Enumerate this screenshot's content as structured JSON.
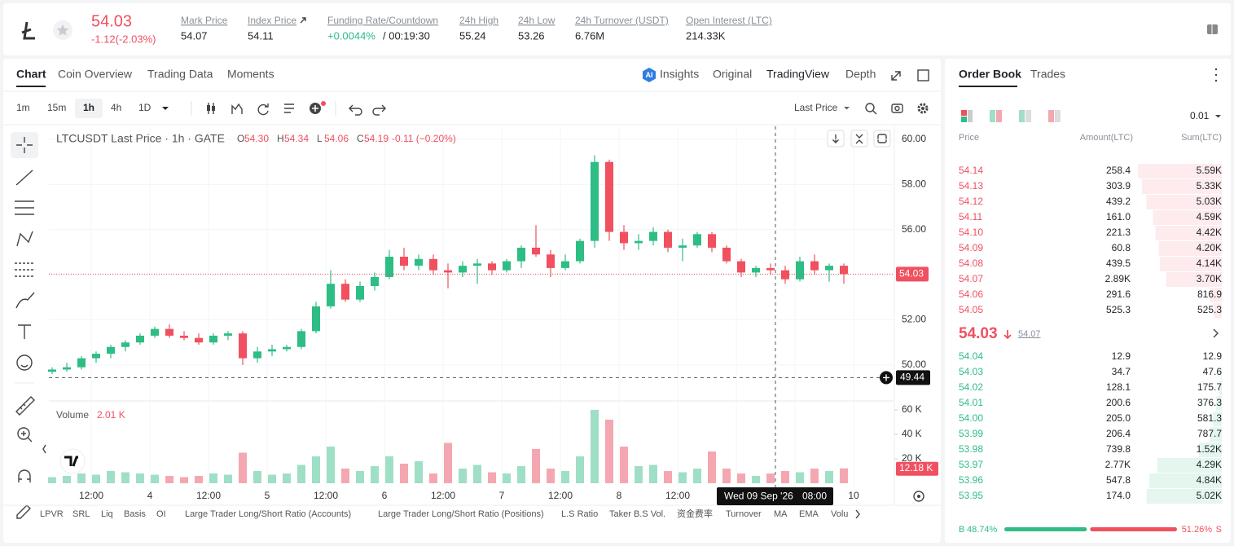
{
  "header": {
    "price": "54.03",
    "change": "-1.12(-2.03%)",
    "stats": [
      {
        "label": "Mark Price",
        "value": "54.07"
      },
      {
        "label": "Index Price",
        "value": "54.11"
      },
      {
        "label": "Funding Rate/Countdown",
        "value": "+0.0044%",
        "extra": "/ 00:19:30"
      },
      {
        "label": "24h High",
        "value": "55.24"
      },
      {
        "label": "24h Low",
        "value": "53.26"
      },
      {
        "label": "24h Turnover (USDT)",
        "value": "6.76M"
      },
      {
        "label": "Open Interest (LTC)",
        "value": "214.33K"
      }
    ]
  },
  "chart_tabs": [
    "Chart",
    "Coin Overview",
    "Trading Data",
    "Moments"
  ],
  "view_tabs": [
    "Insights",
    "Original",
    "TradingView",
    "Depth"
  ],
  "intervals": [
    "1m",
    "15m",
    "1h",
    "4h",
    "1D"
  ],
  "price_type": "Last Price",
  "chart_data": {
    "type": "candlestick",
    "title": "LTCUSDT Last Price · 1h · GATE",
    "ohlc_legend": [
      [
        "O",
        "54.30"
      ],
      [
        "H",
        "54.34"
      ],
      [
        "L",
        "54.06"
      ],
      [
        "C",
        "54.19"
      ]
    ],
    "legend_change": "-0.11 (−0.20%)",
    "up_color": "#2ebd85",
    "down_color": "#f0505f",
    "volume_up_color": "#9fdfc5",
    "volume_down_color": "#f4a7b1",
    "open": [
      49.7,
      49.8,
      49.9,
      50.3,
      50.5,
      50.8,
      51.0,
      51.3,
      51.6,
      51.3,
      51.2,
      51.0,
      51.3,
      51.4,
      50.3,
      50.6,
      50.7,
      50.8,
      51.5,
      52.6,
      53.6,
      52.9,
      53.5,
      53.9,
      54.8,
      54.4,
      54.7,
      54.2,
      54.1,
      54.4,
      54.5,
      54.2,
      54.6,
      55.2,
      54.9,
      54.3,
      54.6,
      55.5,
      59.0,
      55.9,
      55.4,
      55.5,
      55.9,
      55.2,
      55.3,
      55.8,
      55.2,
      54.6,
      54.1,
      54.3,
      54.2,
      53.8,
      54.6,
      54.2,
      54.4
    ],
    "high": [
      49.9,
      50.1,
      50.4,
      50.6,
      50.9,
      51.1,
      51.4,
      51.7,
      51.8,
      51.5,
      51.4,
      51.4,
      51.5,
      51.5,
      50.8,
      50.9,
      50.9,
      51.6,
      52.8,
      54.2,
      53.8,
      53.7,
      54.1,
      55.1,
      55.2,
      54.9,
      54.9,
      54.5,
      54.6,
      54.7,
      54.6,
      54.7,
      55.3,
      56.2,
      55.1,
      54.9,
      55.6,
      59.3,
      59.1,
      56.2,
      55.8,
      56.1,
      56.0,
      55.6,
      55.9,
      55.9,
      55.3,
      54.7,
      54.4,
      54.5,
      54.4,
      54.8,
      54.9,
      54.5,
      54.5
    ],
    "low": [
      49.6,
      49.7,
      49.8,
      50.1,
      50.3,
      50.6,
      50.9,
      51.2,
      51.2,
      51.1,
      50.9,
      50.9,
      51.1,
      50.0,
      50.1,
      50.4,
      50.6,
      50.7,
      51.4,
      52.5,
      52.8,
      52.8,
      53.3,
      53.8,
      54.2,
      54.2,
      54.0,
      53.4,
      53.9,
      53.6,
      54.0,
      54.1,
      54.3,
      54.8,
      53.9,
      54.2,
      54.5,
      55.2,
      55.5,
      55.1,
      55.1,
      55.3,
      55.0,
      54.6,
      55.2,
      55.0,
      54.5,
      53.9,
      53.9,
      54.0,
      53.6,
      53.7,
      54.0,
      53.7,
      53.6
    ],
    "close": [
      49.8,
      49.9,
      50.3,
      50.5,
      50.8,
      51.0,
      51.3,
      51.6,
      51.3,
      51.2,
      51.0,
      51.3,
      51.4,
      50.3,
      50.6,
      50.7,
      50.8,
      51.5,
      52.6,
      53.6,
      52.9,
      53.5,
      53.9,
      54.8,
      54.4,
      54.7,
      54.2,
      54.1,
      54.4,
      54.5,
      54.2,
      54.6,
      55.2,
      54.9,
      54.3,
      54.6,
      55.5,
      59.0,
      55.9,
      55.4,
      55.5,
      55.9,
      55.2,
      55.3,
      55.8,
      55.2,
      54.6,
      54.1,
      54.3,
      54.2,
      53.8,
      54.6,
      54.2,
      54.4,
      54.03
    ],
    "volume": [
      5,
      6,
      8,
      7,
      10,
      9,
      8,
      7,
      6,
      5,
      6,
      8,
      7,
      25,
      10,
      7,
      8,
      15,
      22,
      30,
      12,
      10,
      14,
      22,
      16,
      18,
      8,
      33,
      12,
      15,
      9,
      8,
      14,
      28,
      12,
      10,
      22,
      60,
      52,
      30,
      14,
      15,
      10,
      9,
      12,
      26,
      12,
      8,
      6,
      8,
      10,
      9,
      12,
      10,
      12.18
    ],
    "ylim": [
      48.48,
      60.58
    ],
    "yticks": [
      {
        "value": 50,
        "label": "50.00"
      },
      {
        "value": 52,
        "label": "52.00"
      },
      {
        "value": 54,
        "label": "54.00"
      },
      {
        "value": 56,
        "label": "56.00"
      },
      {
        "value": 58,
        "label": "58.00"
      },
      {
        "value": 60,
        "label": "60.00"
      }
    ],
    "volume_ylim": [
      0,
      65.3
    ],
    "volume_yticks": [
      {
        "value": 20,
        "label": "20 K"
      },
      {
        "value": 40,
        "label": "40 K"
      },
      {
        "value": 60,
        "label": "60 K"
      }
    ],
    "x_labels": [
      "12:00",
      "4",
      "12:00",
      "5",
      "12:00",
      "6",
      "12:00",
      "7",
      "12:00",
      "8",
      "12:00",
      null,
      null,
      "10"
    ],
    "volume_title": "Volume",
    "volume_legend": "2.01 K",
    "last_volume_label": "12.18 K",
    "crosshair": {
      "price": 49.44,
      "time": "Wed 09 Sep '26",
      "hour": "08:00"
    },
    "grid": true
  },
  "indicators": [
    "LPVR",
    "SRL",
    "Liq",
    "Basis",
    "OI",
    "Large Trader Long/Short Ratio (Accounts)",
    "Large Trader Long/Short Ratio (Positions)",
    "L.S Ratio",
    "Taker B.S Vol.",
    "资金费率",
    "Turnover",
    "MA",
    "EMA",
    "Volu"
  ],
  "order_book": {
    "tabs": [
      "Order Book",
      "Trades"
    ],
    "precision": "0.01",
    "headers": [
      "Price",
      "Amount(LTC)",
      "Sum(LTC)"
    ],
    "asks": [
      [
        "54.14",
        "258.4",
        "5.59K"
      ],
      [
        "54.13",
        "303.9",
        "5.33K"
      ],
      [
        "54.12",
        "439.2",
        "5.03K"
      ],
      [
        "54.11",
        "161.0",
        "4.59K"
      ],
      [
        "54.10",
        "221.3",
        "4.42K"
      ],
      [
        "54.09",
        "60.8",
        "4.20K"
      ],
      [
        "54.08",
        "439.5",
        "4.14K"
      ],
      [
        "54.07",
        "2.89K",
        "3.70K"
      ],
      [
        "54.06",
        "291.6",
        "816.9"
      ],
      [
        "54.05",
        "525.3",
        "525.3"
      ]
    ],
    "last_price": "54.03",
    "mark_price": "54.07",
    "bids": [
      [
        "54.04",
        "12.9",
        "12.9"
      ],
      [
        "54.03",
        "34.7",
        "47.6"
      ],
      [
        "54.02",
        "128.1",
        "175.7"
      ],
      [
        "54.01",
        "200.6",
        "376.3"
      ],
      [
        "54.00",
        "205.0",
        "581.3"
      ],
      [
        "53.99",
        "206.4",
        "787.7"
      ],
      [
        "53.98",
        "739.8",
        "1.52K"
      ],
      [
        "53.97",
        "2.77K",
        "4.29K"
      ],
      [
        "53.96",
        "547.8",
        "4.84K"
      ],
      [
        "53.95",
        "174.0",
        "5.02K"
      ]
    ],
    "buy_side": "B",
    "buy_ratio": "48.74%",
    "sell_ratio": "51.26%",
    "sell_side": "S"
  }
}
